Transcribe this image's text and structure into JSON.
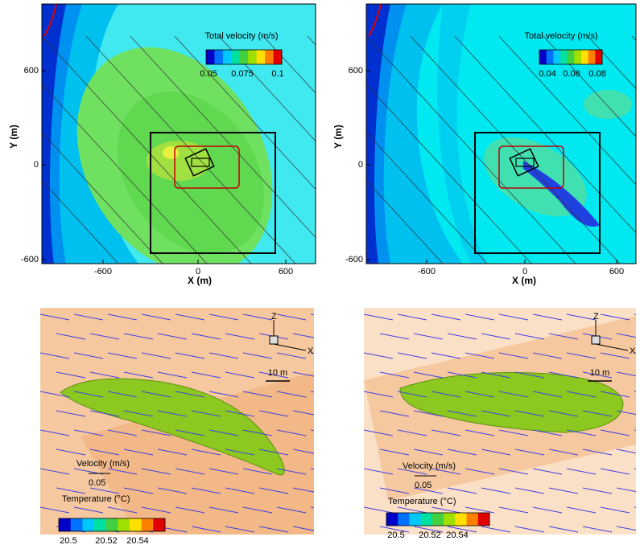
{
  "panels": [
    {
      "x_label": "X (m)",
      "y_label": "Y (m)",
      "x_ticks": [
        "-600",
        "0",
        "600"
      ],
      "y_ticks": [
        "600",
        "0",
        "-600"
      ],
      "colorbar": {
        "title": "Total velocity  (m/s)",
        "labels": [
          "0.05",
          "0.075",
          "0.1"
        ]
      }
    },
    {
      "x_label": "X (m)",
      "y_label": "Y (m)",
      "x_ticks": [
        "-600",
        "0",
        "600"
      ],
      "y_ticks": [
        "600",
        "0",
        "-600"
      ],
      "colorbar": {
        "title": "Total velocity  (m/s)",
        "labels": [
          "0.04",
          "0.06",
          "0.08"
        ]
      }
    },
    {
      "axes": [
        "Z",
        "X"
      ],
      "scale_bar": "10 m",
      "velocity_legend": {
        "title": "Velocity (m/s)",
        "value": "0.05"
      },
      "colorbar": {
        "title": "Temperature  (°C)",
        "labels": [
          "20.5",
          "20.52",
          "20.54"
        ]
      }
    },
    {
      "axes": [
        "Z",
        "X"
      ],
      "scale_bar": "10 m",
      "velocity_legend": {
        "title": "Velocity (m/s)",
        "value": "0.05"
      },
      "colorbar": {
        "title": "Temperature  (°C)",
        "labels": [
          "20.5",
          "20.52",
          "20.54"
        ]
      }
    }
  ]
}
